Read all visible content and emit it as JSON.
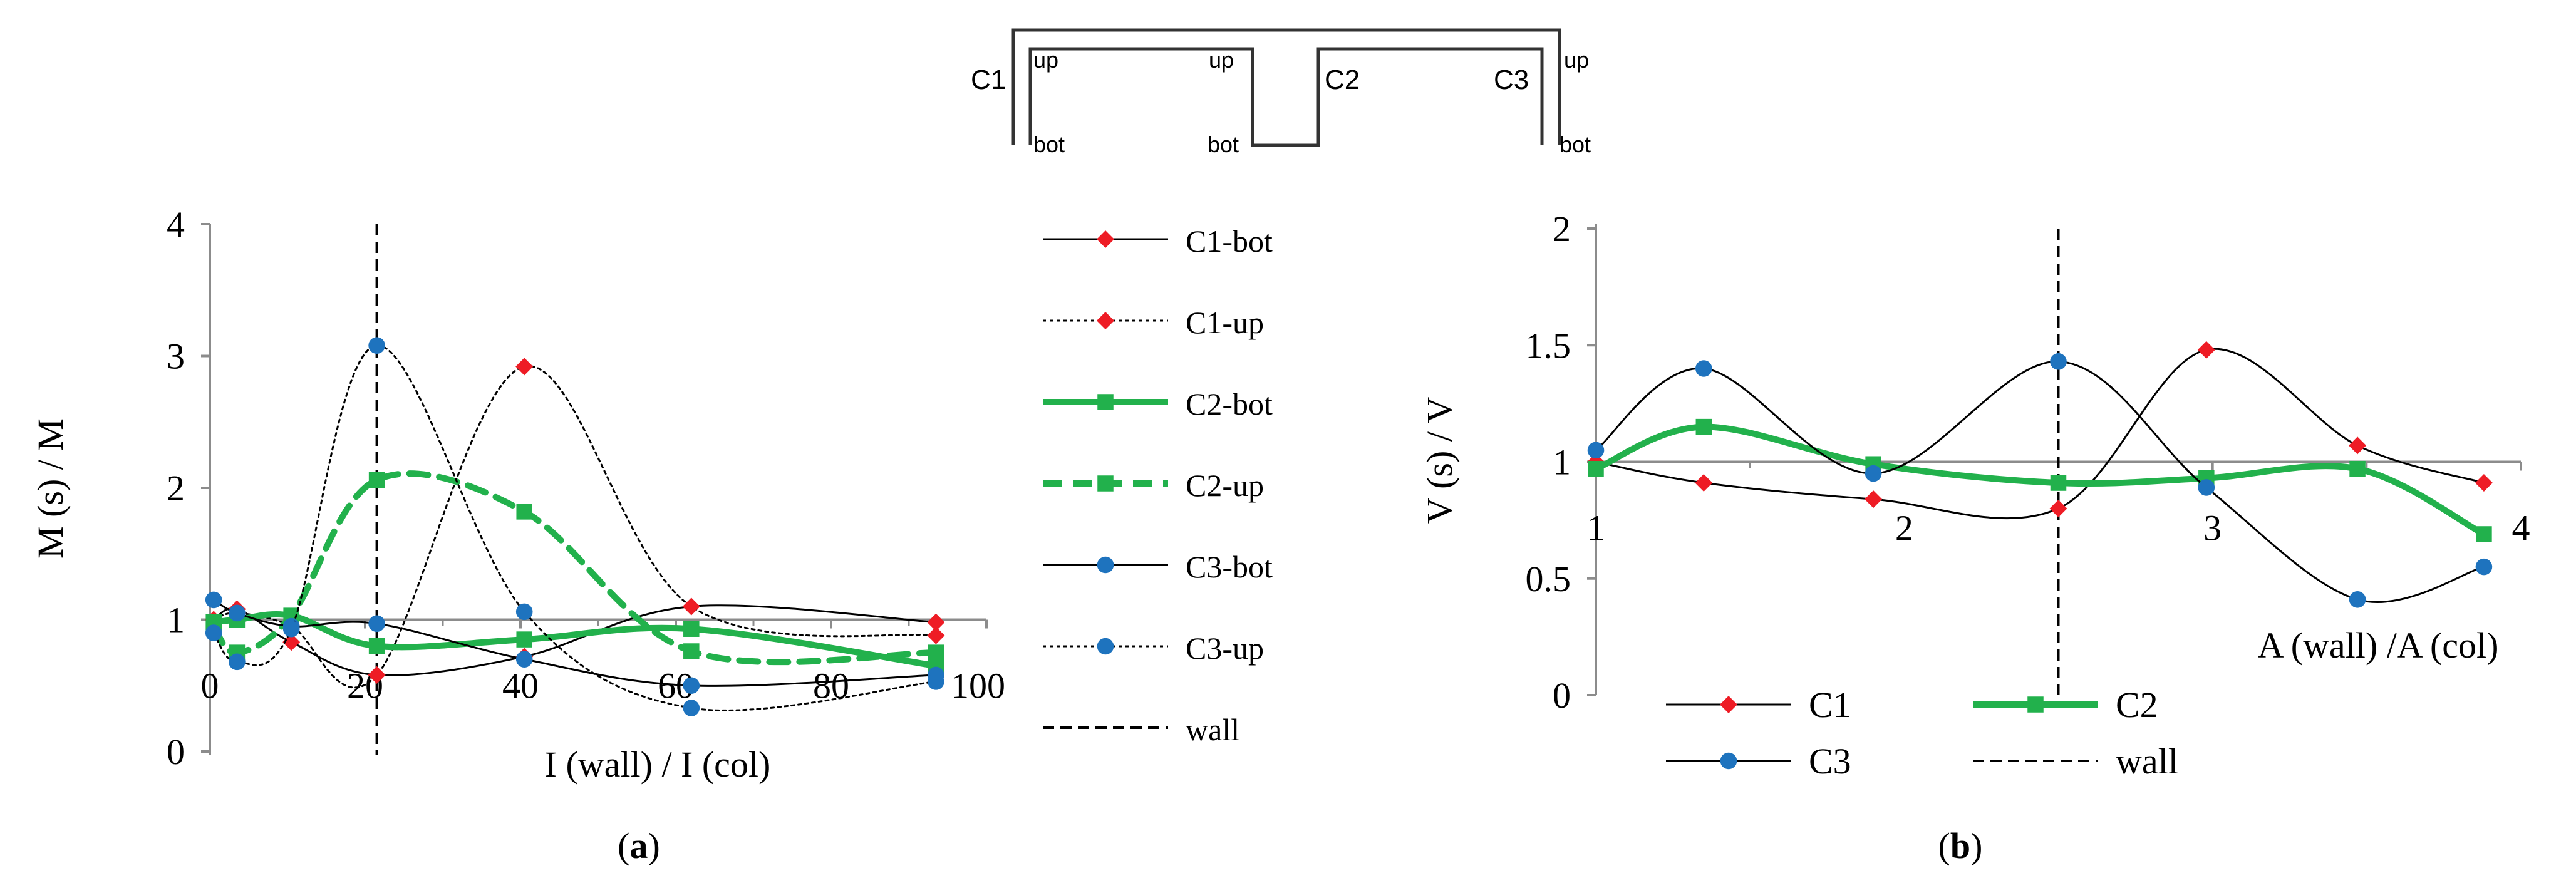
{
  "colors": {
    "c1": "#ee1c25",
    "c2": "#22b14c",
    "c3": "#1e73be",
    "axis": "#8c8c8c",
    "ink": "#000000"
  },
  "schematic": {
    "labels": {
      "c1": "C1",
      "c2": "C2",
      "c3": "C3",
      "up": "up",
      "bot": "bot"
    }
  },
  "chart_data": [
    {
      "id": "a",
      "type": "line",
      "caption": "(a)",
      "xlabel": "I (wall) / I (col)",
      "ylabel": "M (s) / M",
      "xlim": [
        0,
        100
      ],
      "ylim": [
        0,
        4
      ],
      "xticks": [
        "0",
        "20",
        "40",
        "60",
        "80",
        "100"
      ],
      "yticks": [
        "0",
        "1",
        "2",
        "3",
        "4"
      ],
      "x_axis_crosses_at": 1,
      "wall_x": 21.5,
      "legend_position": "right",
      "series": [
        {
          "name": "C1-bot",
          "color": "#ee1c25",
          "marker": "diamond",
          "line": "solid-thin",
          "points": [
            [
              0.5,
              1.0
            ],
            [
              3.5,
              1.08
            ],
            [
              10.5,
              0.83
            ],
            [
              21.5,
              0.58
            ],
            [
              40.5,
              0.72
            ],
            [
              62,
              1.1
            ],
            [
              93.5,
              0.98
            ]
          ]
        },
        {
          "name": "C1-up",
          "color": "#ee1c25",
          "marker": "diamond",
          "line": "dotted",
          "points": [
            [
              0.5,
              1.0
            ],
            [
              3.5,
              1.05
            ],
            [
              10.5,
              0.95
            ],
            [
              21.5,
              0.58
            ],
            [
              40.5,
              2.92
            ],
            [
              62,
              1.1
            ],
            [
              93.5,
              0.88
            ]
          ]
        },
        {
          "name": "C2-bot",
          "color": "#22b14c",
          "marker": "square",
          "line": "solid-thick",
          "points": [
            [
              0.5,
              0.98
            ],
            [
              3.5,
              1.0
            ],
            [
              10.5,
              1.03
            ],
            [
              21.5,
              0.8
            ],
            [
              40.5,
              0.85
            ],
            [
              62,
              0.93
            ],
            [
              93.5,
              0.65
            ]
          ]
        },
        {
          "name": "C2-up",
          "color": "#22b14c",
          "marker": "square",
          "line": "dashed-thick",
          "points": [
            [
              0.5,
              0.95
            ],
            [
              3.5,
              0.75
            ],
            [
              10.5,
              1.03
            ],
            [
              21.5,
              2.06
            ],
            [
              40.5,
              1.82
            ],
            [
              62,
              0.76
            ],
            [
              93.5,
              0.75
            ]
          ]
        },
        {
          "name": "C3-bot",
          "color": "#1e73be",
          "marker": "circle",
          "line": "solid-thin",
          "points": [
            [
              0.5,
              1.15
            ],
            [
              3.5,
              1.05
            ],
            [
              10.5,
              0.95
            ],
            [
              21.5,
              0.97
            ],
            [
              40.5,
              0.7
            ],
            [
              62,
              0.5
            ],
            [
              93.5,
              0.58
            ]
          ]
        },
        {
          "name": "C3-up",
          "color": "#1e73be",
          "marker": "circle",
          "line": "dotted",
          "points": [
            [
              0.5,
              0.9
            ],
            [
              3.5,
              0.68
            ],
            [
              10.5,
              0.93
            ],
            [
              21.5,
              3.08
            ],
            [
              40.5,
              1.06
            ],
            [
              62,
              0.33
            ],
            [
              93.5,
              0.53
            ]
          ]
        },
        {
          "name": "wall",
          "color": "#000000",
          "marker": "none",
          "line": "dashed-black",
          "points": []
        }
      ]
    },
    {
      "id": "b",
      "type": "line",
      "caption": "(b)",
      "xlabel": "A (wall) /A (col)",
      "ylabel": "V (s) / V",
      "xlim": [
        1,
        4
      ],
      "ylim": [
        0,
        2
      ],
      "xticks": [
        "1",
        "2",
        "3",
        "4"
      ],
      "yticks": [
        "0",
        "0.5",
        "1",
        "1.5",
        "2"
      ],
      "x_axis_crosses_at": 1,
      "wall_x": 2.5,
      "legend_position": "bottom",
      "series": [
        {
          "name": "C1",
          "color": "#ee1c25",
          "marker": "diamond",
          "line": "solid-thin",
          "points": [
            [
              1.0,
              1.0
            ],
            [
              1.35,
              0.91
            ],
            [
              1.9,
              0.84
            ],
            [
              2.5,
              0.8
            ],
            [
              2.98,
              1.48
            ],
            [
              3.47,
              1.07
            ],
            [
              3.88,
              0.91
            ]
          ]
        },
        {
          "name": "C2",
          "color": "#22b14c",
          "marker": "square",
          "line": "solid-thick",
          "points": [
            [
              1.0,
              0.97
            ],
            [
              1.35,
              1.15
            ],
            [
              1.9,
              0.99
            ],
            [
              2.5,
              0.91
            ],
            [
              2.98,
              0.93
            ],
            [
              3.47,
              0.97
            ],
            [
              3.88,
              0.69
            ]
          ]
        },
        {
          "name": "C3",
          "color": "#1e73be",
          "marker": "circle",
          "line": "solid-thin",
          "points": [
            [
              1.0,
              1.05
            ],
            [
              1.35,
              1.4
            ],
            [
              1.9,
              0.95
            ],
            [
              2.5,
              1.43
            ],
            [
              2.98,
              0.89
            ],
            [
              3.47,
              0.41
            ],
            [
              3.88,
              0.55
            ]
          ]
        },
        {
          "name": "wall",
          "color": "#000000",
          "marker": "none",
          "line": "dashed-black",
          "points": []
        }
      ]
    }
  ]
}
